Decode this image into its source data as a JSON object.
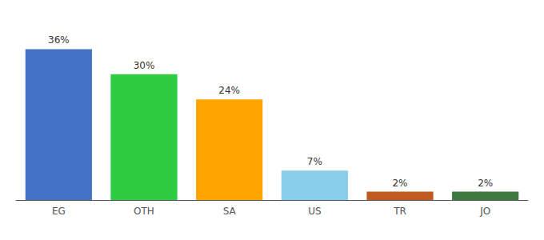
{
  "chart_data": {
    "type": "bar",
    "categories": [
      "EG",
      "OTH",
      "SA",
      "US",
      "TR",
      "JO"
    ],
    "values": [
      36,
      30,
      24,
      7,
      2,
      2
    ],
    "value_labels": [
      "36%",
      "30%",
      "24%",
      "7%",
      "2%",
      "2%"
    ],
    "colors": [
      "#4472C4",
      "#2ECC40",
      "#FFA500",
      "#87CEEB",
      "#C05A1F",
      "#3D7A3D"
    ],
    "data_labels": true,
    "ylim": [
      0,
      42
    ],
    "grid": false,
    "tick_labels": "x"
  }
}
